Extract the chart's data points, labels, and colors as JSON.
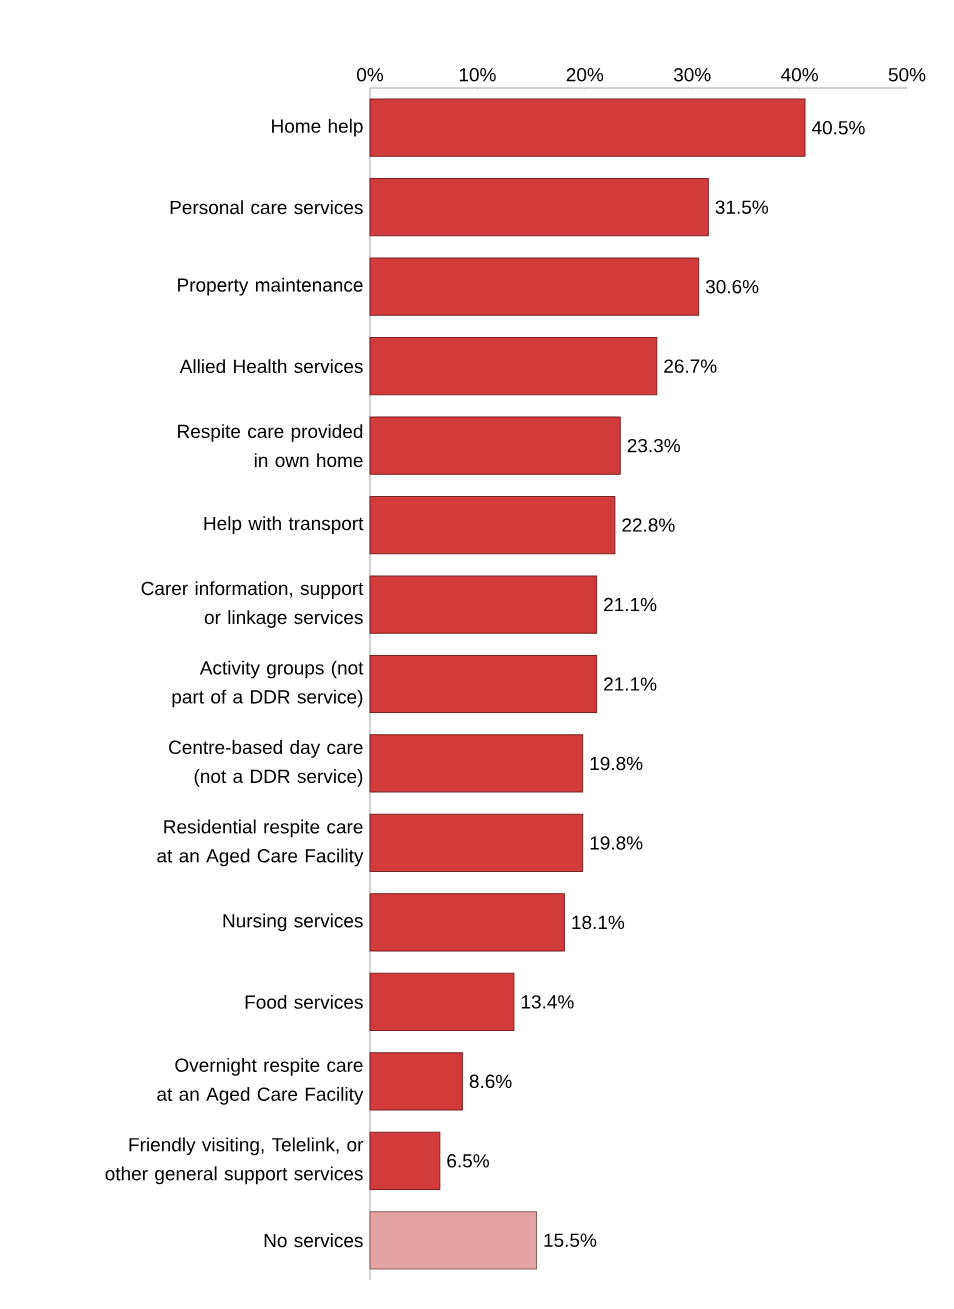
{
  "chart_data": {
    "type": "bar",
    "orientation": "horizontal",
    "categories": [
      "Home help",
      "Personal care services",
      "Property maintenance",
      "Allied Health services",
      "Respite care provided in own home",
      "Help with transport",
      "Carer information, support or linkage services",
      "Activity groups (not part of a DDR service)",
      "Centre-based day care (not a DDR service)",
      "Residential respite care at an Aged Care Facility",
      "Nursing services",
      "Food services",
      "Overnight respite care at an Aged Care Facility",
      "Friendly visiting, Telelink, or other general support services",
      "No services"
    ],
    "values": [
      40.5,
      31.5,
      30.6,
      26.7,
      23.3,
      22.8,
      21.1,
      21.1,
      19.8,
      19.8,
      18.1,
      13.4,
      8.6,
      6.5,
      15.5
    ],
    "value_labels": [
      "40.5%",
      "31.5%",
      "30.6%",
      "26.7%",
      "23.3%",
      "22.8%",
      "21.1%",
      "21.1%",
      "19.8%",
      "19.8%",
      "18.1%",
      "13.4%",
      "8.6%",
      "6.5%",
      "15.5%"
    ],
    "colors": [
      "#d13b3b",
      "#d13b3b",
      "#d13b3b",
      "#d13b3b",
      "#d13b3b",
      "#d13b3b",
      "#d13b3b",
      "#d13b3b",
      "#d13b3b",
      "#d13b3b",
      "#d13b3b",
      "#d13b3b",
      "#d13b3b",
      "#d13b3b",
      "#e6a3a3"
    ],
    "xlim": [
      0,
      50
    ],
    "xticks": [
      {
        "value": 0,
        "label": "0%"
      },
      {
        "value": 10,
        "label": "10%"
      },
      {
        "value": 20,
        "label": "20%"
      },
      {
        "value": 30,
        "label": "30%"
      },
      {
        "value": 40,
        "label": "40%"
      },
      {
        "value": 50,
        "label": "50%"
      }
    ],
    "grid": false
  }
}
